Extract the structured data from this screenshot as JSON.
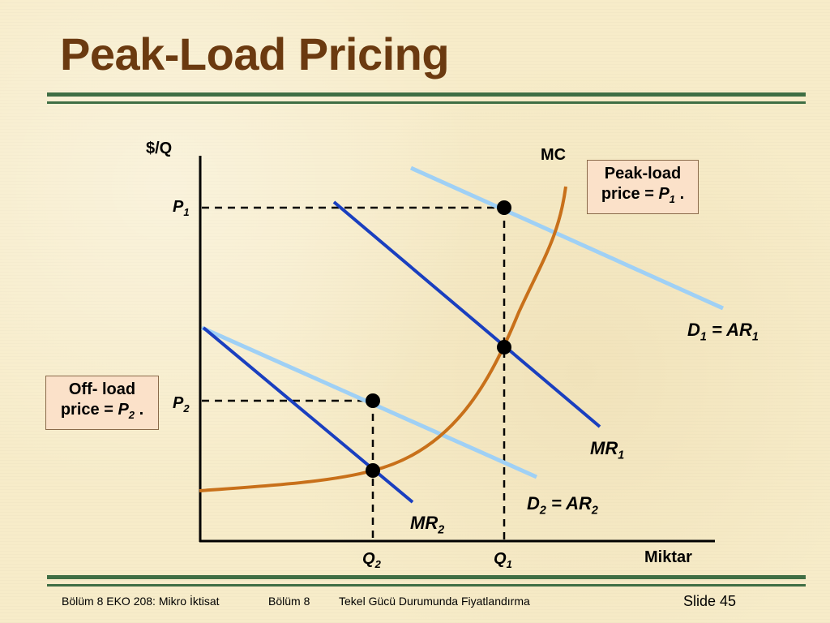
{
  "slide": {
    "title": "Peak-Load Pricing",
    "footer": {
      "course": "Bölüm 8 EKO 208: Mikro İktisat",
      "chapter": "Bölüm 8",
      "topic": "Tekel Gücü Durumunda Fiyatlandırma",
      "slide_number": "Slide 45"
    }
  },
  "diagram": {
    "y_axis_label": "$/Q",
    "x_axis_label": "Miktar",
    "curves": {
      "mc": {
        "label": "MC",
        "color": "#c8701a"
      },
      "d1": {
        "label": "D",
        "sub": "1",
        "eq": " = AR",
        "sub2": "1",
        "color": "#9fd0f5"
      },
      "d2": {
        "label": "D",
        "sub": "2",
        "eq": " = AR",
        "sub2": "2",
        "color": "#9fd0f5"
      },
      "mr1": {
        "label": "MR",
        "sub": "1",
        "color": "#1a3fbf"
      },
      "mr2": {
        "label": "MR",
        "sub": "2",
        "color": "#1a3fbf"
      }
    },
    "prices": {
      "p1": {
        "label": "P",
        "sub": "1"
      },
      "p2": {
        "label": "P",
        "sub": "2"
      }
    },
    "quantities": {
      "q1": {
        "label": "Q",
        "sub": "1"
      },
      "q2": {
        "label": "Q",
        "sub": "2"
      }
    },
    "callouts": {
      "peak": {
        "line1": "Peak-load",
        "line2_prefix": "price = ",
        "price_label": "P",
        "price_sub": "1",
        "suffix": " ."
      },
      "off": {
        "line1": "Off- load",
        "line2_prefix": "price = ",
        "price_label": "P",
        "price_sub": "2",
        "suffix": " ."
      }
    }
  }
}
